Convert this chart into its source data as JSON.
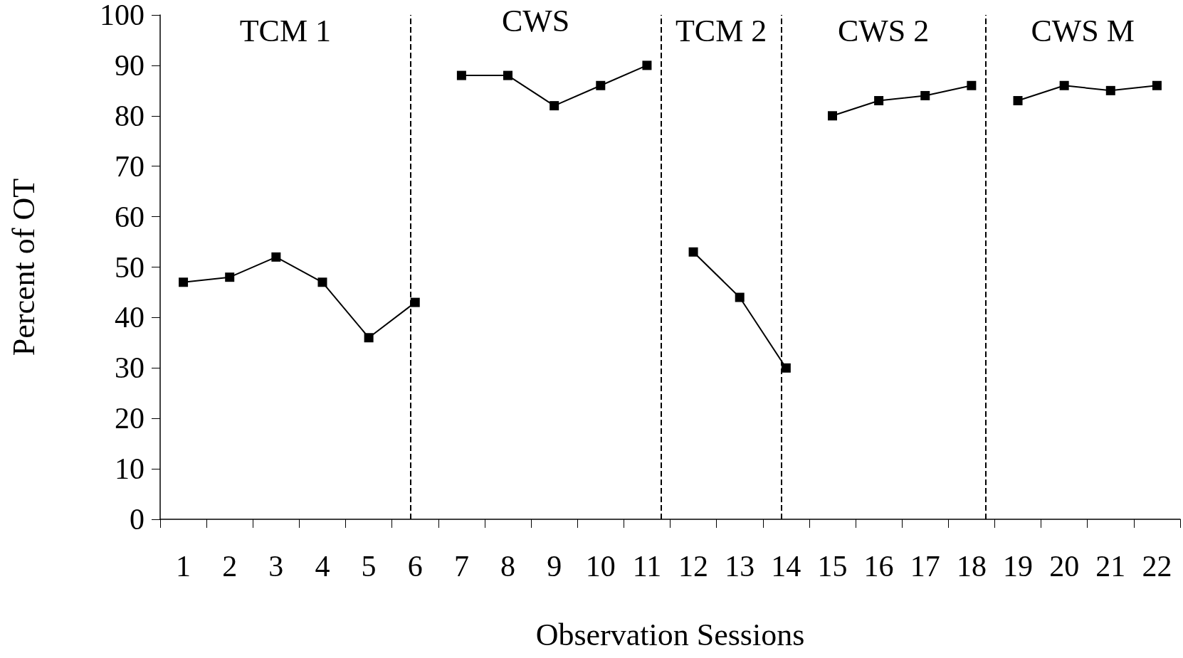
{
  "chart_data": {
    "type": "line",
    "xlabel": "Observation Sessions",
    "ylabel": "Percent of OT",
    "xlim": [
      0.5,
      22.5
    ],
    "xticks": [
      {
        "value": 0.5,
        "label": null
      },
      1,
      {
        "value": 1.5,
        "label": null
      },
      2,
      {
        "value": 2.5,
        "label": null
      },
      3,
      {
        "value": 3.5,
        "label": null
      },
      4,
      {
        "value": 4.5,
        "label": null
      },
      5,
      {
        "value": 5.5,
        "label": null
      },
      6,
      {
        "value": 6.5,
        "label": null
      },
      7,
      {
        "value": 7.5,
        "label": null
      },
      8,
      {
        "value": 8.5,
        "label": null
      },
      9,
      {
        "value": 9.5,
        "label": null
      },
      10,
      {
        "value": 10.5,
        "label": null
      },
      11,
      {
        "value": 11.5,
        "label": null
      },
      12,
      {
        "value": 12.5,
        "label": null
      },
      13,
      {
        "value": 13.5,
        "label": null
      },
      14,
      {
        "value": 14.5,
        "label": null
      },
      15,
      {
        "value": 15.5,
        "label": null
      },
      16,
      {
        "value": 16.5,
        "label": null
      },
      17,
      {
        "value": 17.5,
        "label": null
      },
      18,
      {
        "value": 18.5,
        "label": null
      },
      19,
      {
        "value": 19.5,
        "label": null
      },
      20,
      {
        "value": 20.5,
        "label": null
      },
      21,
      {
        "value": 21.5,
        "label": null
      },
      22,
      {
        "value": 22.5,
        "label": null
      }
    ],
    "ylim": [
      0,
      100
    ],
    "yticks": [
      0,
      10,
      20,
      30,
      40,
      50,
      60,
      70,
      80,
      90,
      100
    ],
    "grid": false,
    "marker": "square",
    "line_style": "solid",
    "series": [
      {
        "color": "#000000",
        "x": [
          1,
          2,
          3,
          4,
          5,
          6
        ],
        "values": [
          47,
          48,
          52,
          47,
          36,
          43
        ]
      },
      {
        "color": "#000000",
        "x": [
          7,
          8,
          9,
          10,
          11
        ],
        "values": [
          88,
          88,
          82,
          86,
          90
        ]
      },
      {
        "color": "#000000",
        "x": [
          12,
          13,
          14
        ],
        "values": [
          53,
          44,
          30
        ]
      },
      {
        "color": "#000000",
        "x": [
          15,
          16,
          17,
          18
        ],
        "values": [
          80,
          83,
          84,
          86
        ]
      },
      {
        "color": "#000000",
        "x": [
          19,
          20,
          21,
          22
        ],
        "values": [
          83,
          86,
          85,
          86
        ]
      }
    ],
    "ref_lines": [
      {
        "axis": "x",
        "value": 5.9,
        "color": "#000000",
        "line_style": "dashed"
      },
      {
        "axis": "x",
        "value": 11.3,
        "color": "#000000",
        "line_style": "dashed"
      },
      {
        "axis": "x",
        "value": 13.9,
        "color": "#000000",
        "line_style": "dashed"
      },
      {
        "axis": "x",
        "value": 18.3,
        "color": "#000000",
        "line_style": "dashed"
      }
    ],
    "annotations": [
      "TCM 1",
      "CWS",
      "TCM 2",
      "CWS 2",
      "CWS M"
    ]
  }
}
